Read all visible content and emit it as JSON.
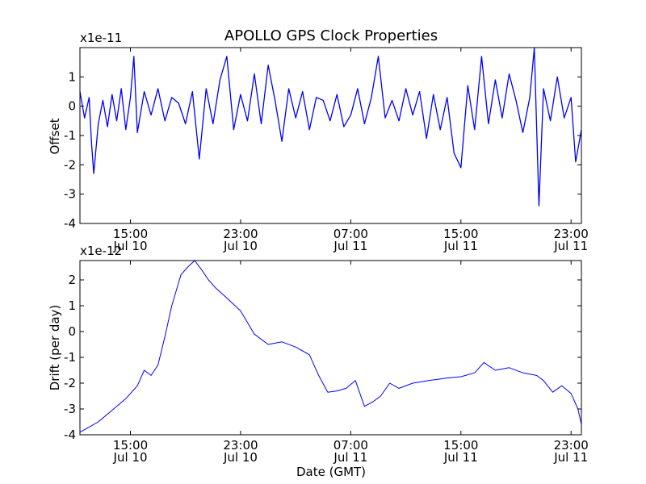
{
  "figure_title": "APOLLO GPS Clock Properties",
  "chart_data": [
    {
      "type": "line",
      "title": "APOLLO GPS Clock Properties",
      "xlabel": "",
      "ylabel": "Offset",
      "multiplier": "x1e-11",
      "ylim": [
        -4,
        2
      ],
      "yticks": [
        -4,
        -3,
        -2,
        -1,
        0,
        1
      ],
      "ytick_labels": [
        "-4",
        "-3",
        "-2",
        "-1",
        "0",
        "1"
      ],
      "xlim": [
        "2010-07-10 11:20",
        "2010-07-11 23:45"
      ],
      "xtick_times": [
        "2010-07-10 15:00",
        "2010-07-10 23:00",
        "2010-07-11 07:00",
        "2010-07-11 15:00",
        "2010-07-11 23:00"
      ],
      "xtick_labels": [
        [
          "15:00",
          "Jul 10"
        ],
        [
          "23:00",
          "Jul 10"
        ],
        [
          "07:00",
          "Jul 11"
        ],
        [
          "15:00",
          "Jul 11"
        ],
        [
          "23:00",
          "Jul 11"
        ]
      ],
      "grid": false,
      "color": "#0000ff",
      "series": [
        {
          "x": [
            "2010-07-10 11:20",
            "2010-07-10 11:40",
            "2010-07-10 12:00",
            "2010-07-10 12:10",
            "2010-07-10 12:20",
            "2010-07-10 12:40",
            "2010-07-10 13:00",
            "2010-07-10 13:20",
            "2010-07-10 13:40",
            "2010-07-10 14:00",
            "2010-07-10 14:20",
            "2010-07-10 14:40",
            "2010-07-10 15:00",
            "2010-07-10 15:15",
            "2010-07-10 15:30",
            "2010-07-10 16:00",
            "2010-07-10 16:30",
            "2010-07-10 17:00",
            "2010-07-10 17:30",
            "2010-07-10 18:00",
            "2010-07-10 18:30",
            "2010-07-10 19:00",
            "2010-07-10 19:30",
            "2010-07-10 20:00",
            "2010-07-10 20:30",
            "2010-07-10 21:00",
            "2010-07-10 21:30",
            "2010-07-10 22:00",
            "2010-07-10 22:30",
            "2010-07-10 23:00",
            "2010-07-10 23:30",
            "2010-07-11 00:00",
            "2010-07-11 00:30",
            "2010-07-11 01:00",
            "2010-07-11 01:30",
            "2010-07-11 02:00",
            "2010-07-11 02:30",
            "2010-07-11 03:00",
            "2010-07-11 03:30",
            "2010-07-11 04:00",
            "2010-07-11 04:30",
            "2010-07-11 05:00",
            "2010-07-11 05:30",
            "2010-07-11 06:00",
            "2010-07-11 06:30",
            "2010-07-11 07:00",
            "2010-07-11 07:30",
            "2010-07-11 08:00",
            "2010-07-11 08:30",
            "2010-07-11 09:00",
            "2010-07-11 09:30",
            "2010-07-11 10:00",
            "2010-07-11 10:30",
            "2010-07-11 11:00",
            "2010-07-11 11:30",
            "2010-07-11 12:00",
            "2010-07-11 12:30",
            "2010-07-11 13:00",
            "2010-07-11 13:30",
            "2010-07-11 14:00",
            "2010-07-11 14:30",
            "2010-07-11 15:00",
            "2010-07-11 15:30",
            "2010-07-11 16:00",
            "2010-07-11 16:30",
            "2010-07-11 17:00",
            "2010-07-11 17:30",
            "2010-07-11 18:00",
            "2010-07-11 18:30",
            "2010-07-11 19:00",
            "2010-07-11 19:30",
            "2010-07-11 20:00",
            "2010-07-11 20:20",
            "2010-07-11 20:40",
            "2010-07-11 21:00",
            "2010-07-11 21:30",
            "2010-07-11 22:00",
            "2010-07-11 22:30",
            "2010-07-11 23:00",
            "2010-07-11 23:20",
            "2010-07-11 23:45"
          ],
          "y": [
            0.5,
            -0.4,
            0.3,
            -1.2,
            -2.3,
            -0.6,
            0.2,
            -0.7,
            0.4,
            -0.5,
            0.6,
            -0.8,
            0.3,
            1.7,
            -0.9,
            0.5,
            -0.3,
            0.6,
            -0.5,
            0.3,
            0.1,
            -0.6,
            0.5,
            -1.8,
            0.6,
            -0.6,
            0.9,
            1.7,
            -0.8,
            0.4,
            -0.5,
            1.1,
            -0.6,
            1.4,
            0.2,
            -1.2,
            0.6,
            -0.4,
            0.5,
            -0.8,
            0.3,
            0.2,
            -0.5,
            0.4,
            -0.7,
            -0.3,
            0.6,
            -0.6,
            0.3,
            1.7,
            -0.4,
            0.2,
            -0.5,
            0.6,
            -0.3,
            0.5,
            -1.1,
            0.4,
            -0.8,
            0.3,
            -1.6,
            -2.1,
            0.7,
            -0.8,
            1.7,
            -0.6,
            0.9,
            -0.4,
            1.1,
            0.2,
            -0.9,
            0.3,
            2.0,
            -3.4,
            0.6,
            -0.5,
            1.0,
            -0.4,
            0.3,
            -1.9,
            -0.8
          ]
        }
      ]
    },
    {
      "type": "line",
      "title": "",
      "xlabel": "Date (GMT)",
      "ylabel": "Drift (per day)",
      "multiplier": "x1e-12",
      "ylim": [
        -4,
        2.75
      ],
      "yticks": [
        -4,
        -3,
        -2,
        -1,
        0,
        1,
        2
      ],
      "ytick_labels": [
        "-4",
        "-3",
        "-2",
        "-1",
        "0",
        "1",
        "2"
      ],
      "xlim": [
        "2010-07-10 11:20",
        "2010-07-11 23:45"
      ],
      "xtick_times": [
        "2010-07-10 15:00",
        "2010-07-10 23:00",
        "2010-07-11 07:00",
        "2010-07-11 15:00",
        "2010-07-11 23:00"
      ],
      "xtick_labels": [
        [
          "15:00",
          "Jul 10"
        ],
        [
          "23:00",
          "Jul 10"
        ],
        [
          "07:00",
          "Jul 11"
        ],
        [
          "15:00",
          "Jul 11"
        ],
        [
          "23:00",
          "Jul 11"
        ]
      ],
      "grid": false,
      "color": "#0000ff",
      "series": [
        {
          "x": [
            "2010-07-10 11:20",
            "2010-07-10 12:00",
            "2010-07-10 12:40",
            "2010-07-10 13:20",
            "2010-07-10 14:00",
            "2010-07-10 14:40",
            "2010-07-10 15:30",
            "2010-07-10 16:00",
            "2010-07-10 16:30",
            "2010-07-10 17:00",
            "2010-07-10 17:30",
            "2010-07-10 18:00",
            "2010-07-10 18:40",
            "2010-07-10 19:10",
            "2010-07-10 19:40",
            "2010-07-10 20:10",
            "2010-07-10 20:40",
            "2010-07-10 21:10",
            "2010-07-10 22:00",
            "2010-07-10 23:00",
            "2010-07-11 00:00",
            "2010-07-11 01:00",
            "2010-07-11 02:00",
            "2010-07-11 03:00",
            "2010-07-11 04:00",
            "2010-07-11 04:40",
            "2010-07-11 05:20",
            "2010-07-11 06:00",
            "2010-07-11 06:40",
            "2010-07-11 07:20",
            "2010-07-11 08:00",
            "2010-07-11 08:40",
            "2010-07-11 09:10",
            "2010-07-11 09:50",
            "2010-07-11 10:30",
            "2010-07-11 11:30",
            "2010-07-11 12:40",
            "2010-07-11 14:00",
            "2010-07-11 15:00",
            "2010-07-11 16:00",
            "2010-07-11 16:40",
            "2010-07-11 17:30",
            "2010-07-11 18:30",
            "2010-07-11 19:30",
            "2010-07-11 20:30",
            "2010-07-11 21:00",
            "2010-07-11 21:40",
            "2010-07-11 22:20",
            "2010-07-11 23:00",
            "2010-07-11 23:30",
            "2010-07-11 23:45"
          ],
          "y": [
            -3.9,
            -3.7,
            -3.5,
            -3.2,
            -2.9,
            -2.6,
            -2.1,
            -1.5,
            -1.7,
            -1.3,
            -0.2,
            1.0,
            2.2,
            2.5,
            2.75,
            2.4,
            2.0,
            1.7,
            1.3,
            0.8,
            -0.1,
            -0.5,
            -0.4,
            -0.6,
            -0.9,
            -1.7,
            -2.35,
            -2.3,
            -2.2,
            -1.9,
            -2.9,
            -2.7,
            -2.5,
            -2.0,
            -2.2,
            -2.0,
            -1.9,
            -1.8,
            -1.75,
            -1.6,
            -1.2,
            -1.5,
            -1.4,
            -1.6,
            -1.7,
            -1.9,
            -2.35,
            -2.1,
            -2.4,
            -3.0,
            -3.6
          ]
        }
      ]
    }
  ]
}
